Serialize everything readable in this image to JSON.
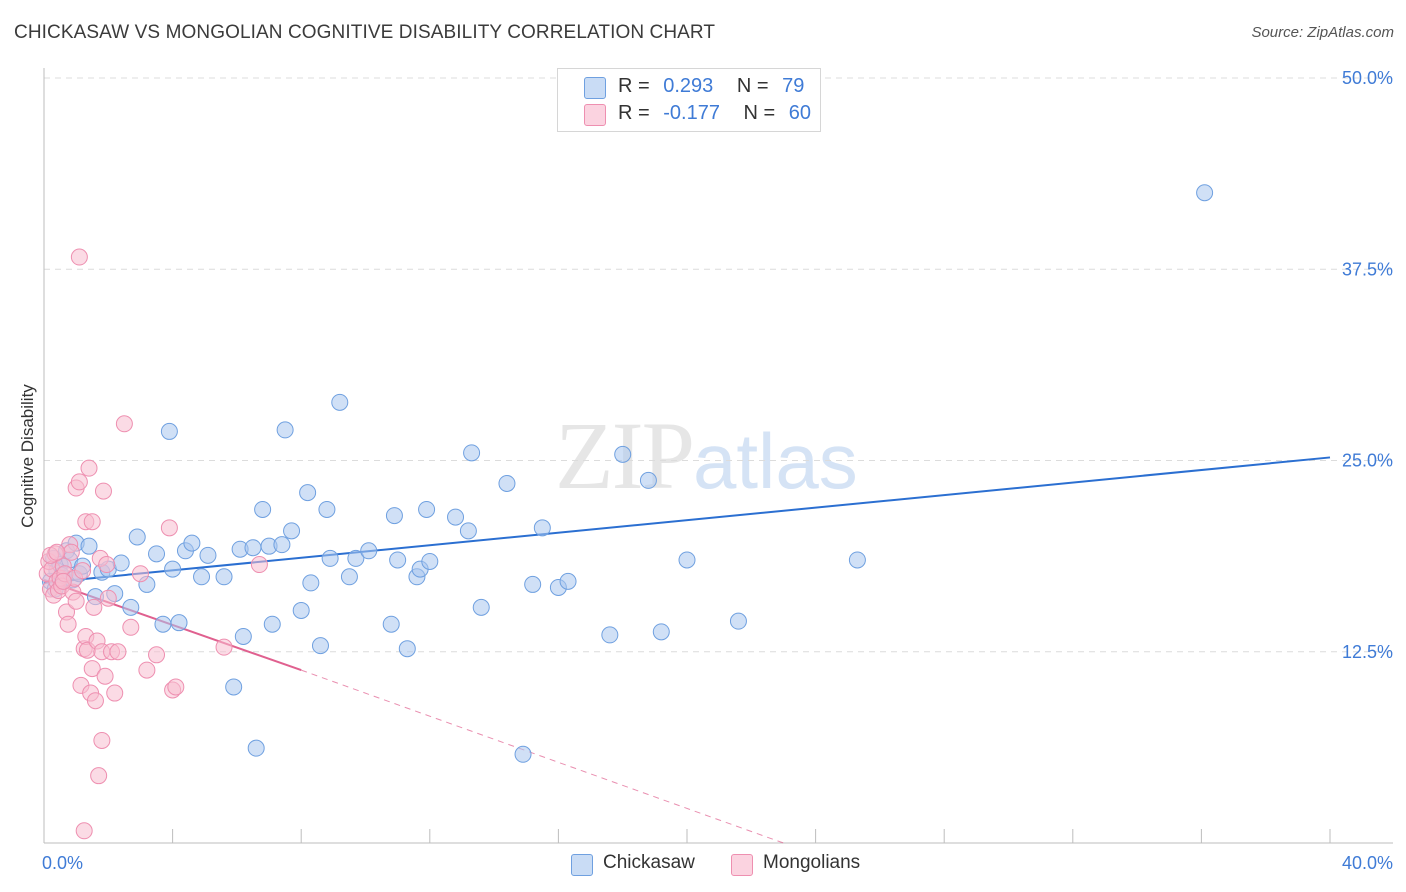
{
  "title": "CHICKASAW VS MONGOLIAN COGNITIVE DISABILITY CORRELATION CHART",
  "source": "Source: ZipAtlas.com",
  "watermark": {
    "zip": "ZIP",
    "atlas": "atlas"
  },
  "legend": {
    "rows": [
      {
        "r_label": "R =",
        "r_value": "0.293",
        "n_label": "N =",
        "n_value": "79",
        "color": "#a9c7ee"
      },
      {
        "r_label": "R =",
        "r_value": "-0.177",
        "n_label": "N =",
        "n_value": "60",
        "color": "#f7bdd0"
      }
    ]
  },
  "bottom_legend": [
    {
      "label": "Chickasaw",
      "color": "#a9c7ee"
    },
    {
      "label": "Mongolians",
      "color": "#f7bdd0"
    }
  ],
  "chart_data": {
    "type": "scatter",
    "title": "CHICKASAW VS MONGOLIAN COGNITIVE DISABILITY CORRELATION CHART",
    "xlabel": "",
    "ylabel": "Cognitive Disability",
    "xlim": [
      0,
      40
    ],
    "ylim": [
      0,
      50
    ],
    "x_tick_labels": [
      "0.0%",
      "40.0%"
    ],
    "y_tick_labels": [
      "12.5%",
      "25.0%",
      "37.5%",
      "50.0%"
    ],
    "y_ticks": [
      12.5,
      25.0,
      37.5,
      50.0
    ],
    "grid": true,
    "legend_position": "top-center",
    "series": [
      {
        "name": "Chickasaw",
        "color": "#6fa0e0",
        "fill": "#a9c7ee",
        "trend": {
          "x": [
            0,
            40
          ],
          "y": [
            17.0,
            25.2
          ],
          "color": "#2b6fd1"
        },
        "points": [
          [
            0.3,
            18.6
          ],
          [
            0.4,
            17.8
          ],
          [
            0.5,
            18.2
          ],
          [
            0.6,
            17.3
          ],
          [
            0.7,
            19.1
          ],
          [
            0.8,
            18.5
          ],
          [
            0.9,
            17.2
          ],
          [
            1.0,
            19.6
          ],
          [
            1.1,
            17.6
          ],
          [
            1.2,
            18.1
          ],
          [
            1.4,
            19.4
          ],
          [
            1.6,
            16.1
          ],
          [
            1.8,
            17.7
          ],
          [
            2.0,
            17.9
          ],
          [
            2.2,
            16.3
          ],
          [
            2.4,
            18.3
          ],
          [
            2.7,
            15.4
          ],
          [
            2.9,
            20.0
          ],
          [
            3.2,
            16.9
          ],
          [
            3.5,
            18.9
          ],
          [
            3.7,
            14.3
          ],
          [
            3.9,
            26.9
          ],
          [
            4.0,
            17.9
          ],
          [
            4.2,
            14.4
          ],
          [
            4.4,
            19.1
          ],
          [
            4.6,
            19.6
          ],
          [
            4.9,
            17.4
          ],
          [
            5.1,
            18.8
          ],
          [
            5.6,
            17.4
          ],
          [
            5.9,
            10.2
          ],
          [
            6.1,
            19.2
          ],
          [
            6.2,
            13.5
          ],
          [
            6.5,
            19.3
          ],
          [
            6.6,
            6.2
          ],
          [
            6.8,
            21.8
          ],
          [
            7.0,
            19.4
          ],
          [
            7.1,
            14.3
          ],
          [
            7.4,
            19.5
          ],
          [
            7.5,
            27.0
          ],
          [
            7.7,
            20.4
          ],
          [
            8.0,
            15.2
          ],
          [
            8.2,
            22.9
          ],
          [
            8.3,
            17.0
          ],
          [
            8.6,
            12.9
          ],
          [
            8.8,
            21.8
          ],
          [
            8.9,
            18.6
          ],
          [
            9.2,
            28.8
          ],
          [
            9.5,
            17.4
          ],
          [
            9.7,
            18.6
          ],
          [
            10.1,
            19.1
          ],
          [
            10.8,
            14.3
          ],
          [
            10.9,
            21.4
          ],
          [
            11.0,
            18.5
          ],
          [
            11.3,
            12.7
          ],
          [
            11.6,
            17.4
          ],
          [
            11.7,
            17.9
          ],
          [
            11.9,
            21.8
          ],
          [
            12.0,
            18.4
          ],
          [
            12.8,
            21.3
          ],
          [
            13.2,
            20.4
          ],
          [
            13.3,
            25.5
          ],
          [
            13.6,
            15.4
          ],
          [
            14.4,
            23.5
          ],
          [
            14.9,
            5.8
          ],
          [
            15.2,
            16.9
          ],
          [
            15.5,
            20.6
          ],
          [
            16.0,
            16.7
          ],
          [
            16.3,
            17.1
          ],
          [
            17.6,
            13.6
          ],
          [
            18.0,
            25.4
          ],
          [
            18.8,
            23.7
          ],
          [
            19.2,
            13.8
          ],
          [
            20.0,
            18.5
          ],
          [
            21.6,
            14.5
          ],
          [
            25.3,
            18.5
          ],
          [
            36.1,
            42.5
          ],
          [
            0.2,
            17.1
          ],
          [
            0.35,
            16.6
          ],
          [
            0.55,
            17.5
          ]
        ]
      },
      {
        "name": "Mongolians",
        "color": "#ee8fb0",
        "fill": "#f7bdd0",
        "trend": {
          "x": [
            0,
            8.0
          ],
          "y": [
            17.2,
            11.3
          ],
          "color": "#e0608f",
          "dashed_extension": {
            "x": [
              8.0,
              23.0
            ],
            "y": [
              11.3,
              0.0
            ]
          }
        },
        "points": [
          [
            0.1,
            17.6
          ],
          [
            0.15,
            18.4
          ],
          [
            0.2,
            16.6
          ],
          [
            0.25,
            17.9
          ],
          [
            0.3,
            16.2
          ],
          [
            0.35,
            18.9
          ],
          [
            0.4,
            17.1
          ],
          [
            0.45,
            16.5
          ],
          [
            0.5,
            17.3
          ],
          [
            0.55,
            16.8
          ],
          [
            0.6,
            18.1
          ],
          [
            0.65,
            17.6
          ],
          [
            0.7,
            15.1
          ],
          [
            0.75,
            14.3
          ],
          [
            0.8,
            19.5
          ],
          [
            0.85,
            19.0
          ],
          [
            0.9,
            16.4
          ],
          [
            0.95,
            17.3
          ],
          [
            1.0,
            15.8
          ],
          [
            1.0,
            23.2
          ],
          [
            1.1,
            23.6
          ],
          [
            1.15,
            10.3
          ],
          [
            1.2,
            17.8
          ],
          [
            1.25,
            12.7
          ],
          [
            1.3,
            13.5
          ],
          [
            1.3,
            21.0
          ],
          [
            1.35,
            12.6
          ],
          [
            1.4,
            24.5
          ],
          [
            1.45,
            9.8
          ],
          [
            1.5,
            11.4
          ],
          [
            1.5,
            21.0
          ],
          [
            1.55,
            15.4
          ],
          [
            1.6,
            9.3
          ],
          [
            1.65,
            13.2
          ],
          [
            1.7,
            4.4
          ],
          [
            1.75,
            18.6
          ],
          [
            1.8,
            12.5
          ],
          [
            1.8,
            6.7
          ],
          [
            1.85,
            23.0
          ],
          [
            1.9,
            10.9
          ],
          [
            1.95,
            18.2
          ],
          [
            2.0,
            16.0
          ],
          [
            2.1,
            12.5
          ],
          [
            2.2,
            9.8
          ],
          [
            2.3,
            12.5
          ],
          [
            2.5,
            27.4
          ],
          [
            2.7,
            14.1
          ],
          [
            3.0,
            17.6
          ],
          [
            3.2,
            11.3
          ],
          [
            3.5,
            12.3
          ],
          [
            3.9,
            20.6
          ],
          [
            4.0,
            10.0
          ],
          [
            4.1,
            10.2
          ],
          [
            5.6,
            12.8
          ],
          [
            6.7,
            18.2
          ],
          [
            1.1,
            38.3
          ],
          [
            1.25,
            0.8
          ],
          [
            0.2,
            18.8
          ],
          [
            0.4,
            19.0
          ],
          [
            0.6,
            17.1
          ]
        ]
      }
    ]
  }
}
